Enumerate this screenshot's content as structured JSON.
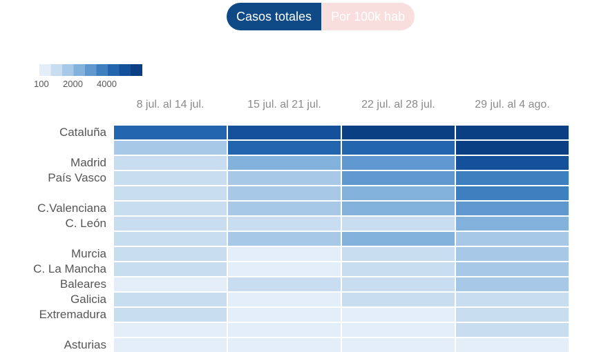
{
  "toggle": {
    "options": [
      {
        "label": "Casos totales",
        "active": true
      },
      {
        "label": "Por 100k hab",
        "active": false
      }
    ]
  },
  "legend": {
    "ticks": [
      "100",
      "2000",
      "4000"
    ],
    "colors": [
      "#e4eef8",
      "#c9ddf0",
      "#a7c8e6",
      "#82b1db",
      "#5e98cf",
      "#3e7fc0",
      "#2466ae",
      "#14519a",
      "#0b3f83"
    ]
  },
  "chart_data": {
    "type": "heatmap",
    "columns": [
      "8 jul. al 14 jul.",
      "15 jul. al 21 jul.",
      "22 jul. al 28 jul.",
      "29 jul. al 4 ago."
    ],
    "rows": [
      {
        "label": "Cataluña",
        "values": [
          3800,
          4500,
          5000,
          5000
        ]
      },
      {
        "label": "",
        "values": [
          1500,
          3500,
          4000,
          4800
        ]
      },
      {
        "label": "Madrid",
        "values": [
          800,
          1800,
          2700,
          4200
        ]
      },
      {
        "label": "País Vasco",
        "values": [
          700,
          1500,
          2300,
          3200
        ]
      },
      {
        "label": "",
        "values": [
          600,
          1400,
          2100,
          3000
        ]
      },
      {
        "label": "C.Valenciana",
        "values": [
          700,
          1200,
          1800,
          2600
        ]
      },
      {
        "label": "C. León",
        "values": [
          500,
          900,
          700,
          1800
        ]
      },
      {
        "label": "",
        "values": [
          500,
          1200,
          1900,
          1400
        ]
      },
      {
        "label": "Murcia",
        "values": [
          350,
          300,
          700,
          1400
        ]
      },
      {
        "label": "C. La Mancha",
        "values": [
          400,
          300,
          600,
          1100
        ]
      },
      {
        "label": "Baleares",
        "values": [
          150,
          400,
          500,
          1000
        ]
      },
      {
        "label": "Galicia",
        "values": [
          600,
          300,
          500,
          800
        ]
      },
      {
        "label": "Extremadura",
        "values": [
          350,
          200,
          150,
          500
        ]
      },
      {
        "label": "",
        "values": [
          150,
          150,
          150,
          700
        ]
      },
      {
        "label": "Asturias",
        "values": [
          100,
          100,
          100,
          300
        ]
      }
    ],
    "scale_stops": [
      100,
      2000,
      4000
    ]
  }
}
